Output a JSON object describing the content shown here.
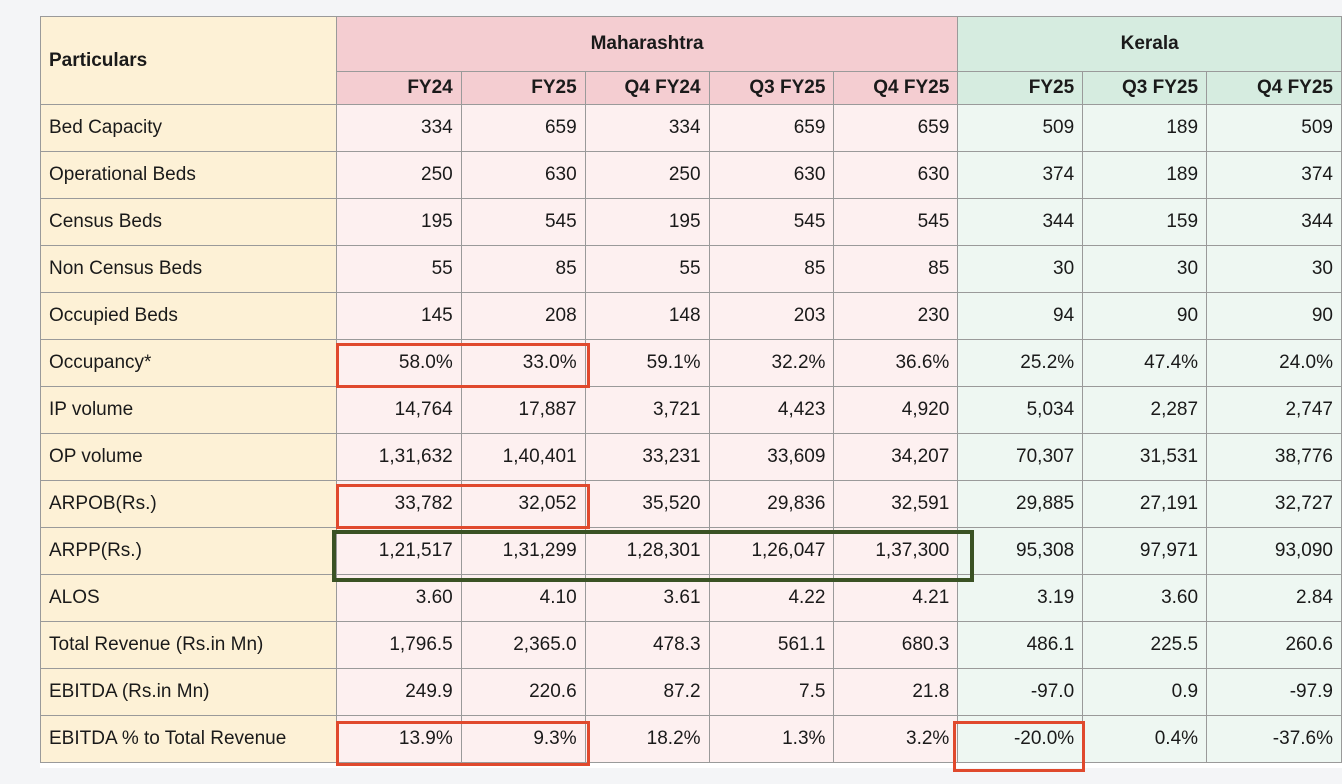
{
  "table": {
    "particulars_label": "Particulars",
    "groups": [
      {
        "name": "Maharashtra",
        "columns": [
          "FY24",
          "FY25",
          "Q4 FY24",
          "Q3 FY25",
          "Q4 FY25"
        ]
      },
      {
        "name": "Kerala",
        "columns": [
          "FY25",
          "Q3 FY25",
          "Q4 FY25"
        ]
      }
    ],
    "rows": [
      {
        "label": "Bed Capacity",
        "mh": [
          "334",
          "659",
          "334",
          "659",
          "659"
        ],
        "kr": [
          "509",
          "189",
          "509"
        ]
      },
      {
        "label": "Operational Beds",
        "mh": [
          "250",
          "630",
          "250",
          "630",
          "630"
        ],
        "kr": [
          "374",
          "189",
          "374"
        ]
      },
      {
        "label": "Census Beds",
        "mh": [
          "195",
          "545",
          "195",
          "545",
          "545"
        ],
        "kr": [
          "344",
          "159",
          "344"
        ]
      },
      {
        "label": "Non Census Beds",
        "mh": [
          "55",
          "85",
          "55",
          "85",
          "85"
        ],
        "kr": [
          "30",
          "30",
          "30"
        ]
      },
      {
        "label": "Occupied Beds",
        "mh": [
          "145",
          "208",
          "148",
          "203",
          "230"
        ],
        "kr": [
          "94",
          "90",
          "90"
        ]
      },
      {
        "label": "Occupancy*",
        "mh": [
          "58.0%",
          "33.0%",
          "59.1%",
          "32.2%",
          "36.6%"
        ],
        "kr": [
          "25.2%",
          "47.4%",
          "24.0%"
        ]
      },
      {
        "label": "IP volume",
        "mh": [
          "14,764",
          "17,887",
          "3,721",
          "4,423",
          "4,920"
        ],
        "kr": [
          "5,034",
          "2,287",
          "2,747"
        ]
      },
      {
        "label": "OP volume",
        "mh": [
          "1,31,632",
          "1,40,401",
          "33,231",
          "33,609",
          "34,207"
        ],
        "kr": [
          "70,307",
          "31,531",
          "38,776"
        ]
      },
      {
        "label": "ARPOB(Rs.)",
        "mh": [
          "33,782",
          "32,052",
          "35,520",
          "29,836",
          "32,591"
        ],
        "kr": [
          "29,885",
          "27,191",
          "32,727"
        ]
      },
      {
        "label": "ARPP(Rs.)",
        "mh": [
          "1,21,517",
          "1,31,299",
          "1,28,301",
          "1,26,047",
          "1,37,300"
        ],
        "kr": [
          "95,308",
          "97,971",
          "93,090"
        ]
      },
      {
        "label": "ALOS",
        "mh": [
          "3.60",
          "4.10",
          "3.61",
          "4.22",
          "4.21"
        ],
        "kr": [
          "3.19",
          "3.60",
          "2.84"
        ]
      },
      {
        "label": "Total Revenue (Rs.in Mn)",
        "mh": [
          "1,796.5",
          "2,365.0",
          "478.3",
          "561.1",
          "680.3"
        ],
        "kr": [
          "486.1",
          "225.5",
          "260.6"
        ]
      },
      {
        "label": "EBITDA (Rs.in Mn)",
        "mh": [
          "249.9",
          "220.6",
          "87.2",
          "7.5",
          "21.8"
        ],
        "kr": [
          "-97.0",
          "0.9",
          "-97.9"
        ]
      },
      {
        "label": "EBITDA % to Total Revenue",
        "mh": [
          "13.9%",
          "9.3%",
          "18.2%",
          "1.3%",
          "3.2%"
        ],
        "kr": [
          "-20.0%",
          "0.4%",
          "-37.6%"
        ]
      }
    ]
  },
  "colors": {
    "particulars_bg": "#fdf1d6",
    "maharashtra_header": "#f4cdd1",
    "maharashtra_cell": "#fdf0f0",
    "kerala_header": "#d6ece0",
    "kerala_cell": "#eef7f2",
    "highlight_red": "#e0492d",
    "highlight_green": "#3a5224"
  }
}
